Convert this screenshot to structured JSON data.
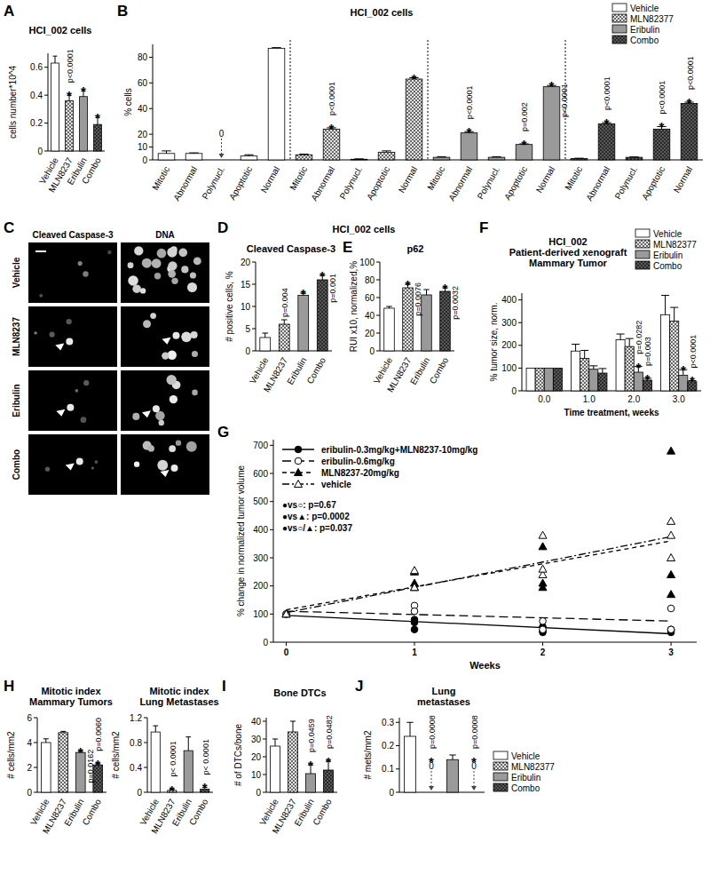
{
  "chart_data": [
    {
      "panel": "A",
      "type": "bar",
      "title": "HCI_002 cells",
      "y_label": "cells number*10^4",
      "categories": [
        "Vehicle",
        "MLN8237",
        "Eribulin",
        "Combo"
      ],
      "values": [
        0.63,
        0.36,
        0.39,
        0.19
      ],
      "errors": [
        0.05,
        0.04,
        0.04,
        0.05
      ],
      "colors": [
        "#ffffff",
        "#e6e6e6",
        "#9a9a9a",
        "#5a5a5a"
      ],
      "stars": [
        null,
        "*",
        "*",
        "*"
      ],
      "p_values": [
        null,
        "p<0.0001",
        null,
        null
      ],
      "ylim": [
        0,
        0.7
      ],
      "yticks": [
        0,
        0.2,
        0.4,
        0.6
      ]
    },
    {
      "panel": "B",
      "type": "bar",
      "title": "HCI_002 cells",
      "y_label": "% cells",
      "categories": [
        "Mitotic",
        "Abnormal",
        "Polynucl.",
        "Apoptotic",
        "Normal"
      ],
      "series": [
        {
          "name": "Vehicle",
          "color": "#ffffff",
          "values": [
            5,
            5,
            0,
            3,
            87
          ],
          "errors": [
            2,
            0.5,
            0,
            1,
            0.5
          ],
          "arrow_labels": [
            null,
            null,
            "0",
            null,
            null
          ]
        },
        {
          "name": "MLN82377",
          "color": "#e6e6e6",
          "values": [
            4,
            24,
            0.5,
            6,
            63
          ],
          "errors": [
            0.5,
            1,
            0.3,
            1,
            1
          ],
          "stars": [
            null,
            "*",
            null,
            null,
            "*"
          ],
          "p_values": [
            null,
            "p<0.0001",
            null,
            null,
            null
          ]
        },
        {
          "name": "Eribulin",
          "color": "#9a9a9a",
          "values": [
            2,
            21,
            2,
            12,
            57
          ],
          "errors": [
            0.5,
            1,
            0.5,
            0.5,
            1
          ],
          "stars": [
            null,
            "*",
            null,
            "*",
            "*"
          ],
          "p_values": [
            null,
            "p<0.0001",
            null,
            "p=0.002",
            "p<0.0001"
          ]
        },
        {
          "name": "Combo",
          "color": "#5a5a5a",
          "values": [
            1,
            28,
            2,
            24,
            44
          ],
          "errors": [
            0.3,
            1,
            0.3,
            2,
            1
          ],
          "stars": [
            null,
            "*",
            null,
            "*",
            "*"
          ],
          "p_values": [
            null,
            "p<0.0001",
            null,
            "p<0.0001",
            "p<0.0001"
          ]
        }
      ],
      "legend": "upper right",
      "ylim": [
        0,
        90
      ],
      "yticks": [
        0,
        10,
        20,
        40,
        60,
        80
      ]
    },
    {
      "panel": "C",
      "type": "image",
      "columns": [
        "Cleaved Caspase-3",
        "DNA"
      ],
      "rows": [
        "Vehicle",
        "MLN8237",
        "Eribulin",
        "Combo"
      ]
    },
    {
      "panel": "D",
      "type": "bar",
      "title": "HCI_002 cells",
      "subtitle": "Cleaved Caspase-3",
      "y_label": "# positive cells, %",
      "categories": [
        "Vehicle",
        "MLN8237",
        "Eribulin",
        "Combo"
      ],
      "values": [
        3,
        6,
        12.5,
        16
      ],
      "errors": [
        1,
        1,
        0.5,
        1
      ],
      "colors": [
        "#ffffff",
        "#e6e6e6",
        "#9a9a9a",
        "#5a5a5a"
      ],
      "stars": [
        null,
        null,
        "*",
        "*"
      ],
      "p_values": [
        null,
        "p=0.004",
        null,
        "p=0.001"
      ],
      "ylim": [
        0,
        20
      ],
      "yticks": [
        0,
        5,
        10,
        15,
        20
      ]
    },
    {
      "panel": "E",
      "type": "bar",
      "subtitle": "p62",
      "y_label": "RUI x10, normalized,%",
      "categories": [
        "Vehicle",
        "MLN8237",
        "Eribulin",
        "Combo"
      ],
      "values": [
        48,
        71,
        63,
        67
      ],
      "errors": [
        2,
        4,
        6,
        4
      ],
      "colors": [
        "#ffffff",
        "#e6e6e6",
        "#9a9a9a",
        "#5a5a5a"
      ],
      "stars": [
        null,
        "*",
        null,
        "*"
      ],
      "p_values": [
        null,
        "p=0.0076",
        null,
        "p=0.0032"
      ],
      "ylim": [
        0,
        100
      ],
      "yticks": [
        0,
        20,
        40,
        60,
        80,
        100
      ]
    },
    {
      "panel": "F",
      "type": "bar",
      "title": "HCI_002\nPatient-derived xenograft\nMammary Tumor",
      "y_label": "% tumor size, norm.",
      "x_label": "Time treatment, weeks",
      "categories": [
        "0.0",
        "1.0",
        "2.0",
        "3.0"
      ],
      "series": [
        {
          "name": "Vehicle",
          "color": "#ffffff",
          "values": [
            100,
            175,
            225,
            335
          ],
          "errors": [
            0,
            30,
            25,
            85
          ]
        },
        {
          "name": "MLN82377",
          "color": "#e6e6e6",
          "values": [
            100,
            143,
            195,
            307
          ],
          "errors": [
            0,
            35,
            35,
            60
          ]
        },
        {
          "name": "Eribulin",
          "color": "#9a9a9a",
          "values": [
            100,
            95,
            82,
            68
          ],
          "errors": [
            0,
            15,
            25,
            25
          ],
          "stars": [
            null,
            null,
            "*",
            "*"
          ],
          "p_values": [
            null,
            null,
            "p=0.0282",
            null
          ]
        },
        {
          "name": "Combo",
          "color": "#5a5a5a",
          "values": [
            100,
            78,
            47,
            40
          ],
          "errors": [
            0,
            20,
            8,
            5
          ],
          "stars": [
            null,
            null,
            "*",
            "*"
          ],
          "p_values": [
            null,
            null,
            "p=0.003",
            "p<0.0001"
          ]
        }
      ],
      "legend": "upper right",
      "ylim": [
        0,
        430
      ],
      "yticks": [
        0,
        100,
        200,
        300,
        400
      ]
    },
    {
      "panel": "G",
      "type": "scatter",
      "x_label": "Weeks",
      "y_label": "% change in normalized tumor volume",
      "xlim": [
        -0.1,
        3.2
      ],
      "xticks": [
        0,
        1,
        2,
        3
      ],
      "ylim": [
        0,
        720
      ],
      "yticks": [
        0,
        100,
        200,
        300,
        400,
        500,
        600,
        700
      ],
      "legend": "upper left",
      "annotations": [
        "●vs○: p=0.67",
        "●vs▲: p=0.0002",
        "●vs○/▲: p=0.037"
      ],
      "series": [
        {
          "name": "eribulin-0.3mg/kg+MLN8237-10mg/kg",
          "color": "#000000",
          "marker": "filled_circle",
          "line_style": "solid",
          "x": [
            0,
            1,
            1,
            1,
            2,
            2,
            2,
            3,
            3,
            3
          ],
          "values": [
            100,
            80,
            45,
            70,
            55,
            40,
            35,
            45,
            40,
            35
          ],
          "fit": {
            "x": [
              0,
              3
            ],
            "values": [
              95,
              30
            ]
          }
        },
        {
          "name": "eribulin-0.6mg/kg",
          "color": "#000000",
          "marker": "open_circle",
          "line_style": "long_dash",
          "x": [
            0,
            1,
            1,
            2,
            2,
            3,
            3
          ],
          "values": [
            100,
            130,
            110,
            75,
            45,
            120,
            45
          ],
          "fit": {
            "x": [
              0,
              3
            ],
            "values": [
              110,
              75
            ]
          }
        },
        {
          "name": "MLN8237-20mg/kg",
          "color": "#000000",
          "marker": "filled_triangle",
          "line_style": "dash",
          "x": [
            0,
            1,
            1,
            1,
            2,
            2,
            2,
            3,
            3,
            3
          ],
          "values": [
            100,
            250,
            210,
            195,
            210,
            195,
            340,
            680,
            240,
            170
          ],
          "fit": {
            "x": [
              0,
              3
            ],
            "values": [
              115,
              360
            ]
          }
        },
        {
          "name": "vehicle",
          "color": "#000000",
          "marker": "open_triangle",
          "line_style": "dash_dot",
          "x": [
            0,
            1,
            1,
            2,
            2,
            2,
            3,
            3,
            3
          ],
          "values": [
            100,
            255,
            195,
            380,
            240,
            260,
            430,
            380,
            300
          ],
          "fit": {
            "x": [
              0,
              3
            ],
            "values": [
              105,
              375
            ]
          }
        }
      ]
    },
    {
      "panel": "H",
      "type": "bar",
      "title": "Mitotic index\nMammary Tumors",
      "y_label": "# cells/mm2",
      "categories": [
        "Vehicle",
        "MLN8237",
        "Eribulin",
        "Combo"
      ],
      "values": [
        4.0,
        4.8,
        3.2,
        2.2
      ],
      "errors": [
        0.3,
        0.1,
        0.1,
        0.1
      ],
      "colors": [
        "#ffffff",
        "#e6e6e6",
        "#9a9a9a",
        "#5a5a5a"
      ],
      "stars": [
        null,
        null,
        "*",
        "*"
      ],
      "p_values": [
        null,
        null,
        "p=0.0162",
        "p=0.0060"
      ],
      "ylim": [
        0,
        6
      ],
      "yticks": [
        0,
        2,
        4,
        6
      ]
    },
    {
      "type": "bar",
      "title": "Mitotic index\nLung Metastases",
      "y_label": "# cells/mm2",
      "categories": [
        "Vehicle",
        "MLN8237",
        "Eribulin",
        "Combo"
      ],
      "values": [
        0.97,
        0.03,
        0.67,
        0.05
      ],
      "errors": [
        0.1,
        0.02,
        0.22,
        0.03
      ],
      "colors": [
        "#ffffff",
        "#e6e6e6",
        "#9a9a9a",
        "#5a5a5a"
      ],
      "stars": [
        null,
        "*",
        null,
        "*"
      ],
      "p_values": [
        null,
        "p< 0.0001",
        null,
        "p< 0.0001"
      ],
      "ylim": [
        0,
        1.2
      ],
      "yticks": [
        0,
        0.4,
        0.8,
        1.2
      ]
    },
    {
      "panel": "I",
      "type": "bar",
      "title": "Bone DTCs",
      "y_label": "# of DTCs/bone",
      "categories": [
        "Vehicle",
        "MLN8237",
        "Eribulin",
        "Combo"
      ],
      "values": [
        26,
        34,
        10.5,
        12.5
      ],
      "errors": [
        4,
        6,
        5,
        5
      ],
      "colors": [
        "#ffffff",
        "#e6e6e6",
        "#9a9a9a",
        "#5a5a5a"
      ],
      "stars": [
        null,
        null,
        "*",
        "*"
      ],
      "p_values": [
        null,
        null,
        "p=0.0459",
        "p=0.0482"
      ],
      "ylim": [
        0,
        42
      ],
      "yticks": [
        0,
        10,
        20,
        30,
        40
      ]
    },
    {
      "panel": "J",
      "type": "bar",
      "title": "Lung\nmetastases",
      "y_label": "# mets/mm2",
      "categories": [
        "Vehicle",
        "MLN82377",
        "Eribulin",
        "Combo"
      ],
      "values": [
        0.24,
        0,
        0.14,
        0
      ],
      "errors": [
        0.06,
        0,
        0.02,
        0
      ],
      "colors": [
        "#ffffff",
        "#e6e6e6",
        "#9a9a9a",
        "#5a5a5a"
      ],
      "arrow_labels": [
        null,
        "0",
        null,
        "0"
      ],
      "stars": [
        null,
        "*",
        null,
        "*"
      ],
      "p_values": [
        null,
        "p=0.0008",
        null,
        "p=0.0008"
      ],
      "ylim": [
        0,
        0.32
      ],
      "yticks": [
        0,
        0.1,
        0.2,
        0.3
      ],
      "tick_labels": "y",
      "legend": "right"
    }
  ]
}
